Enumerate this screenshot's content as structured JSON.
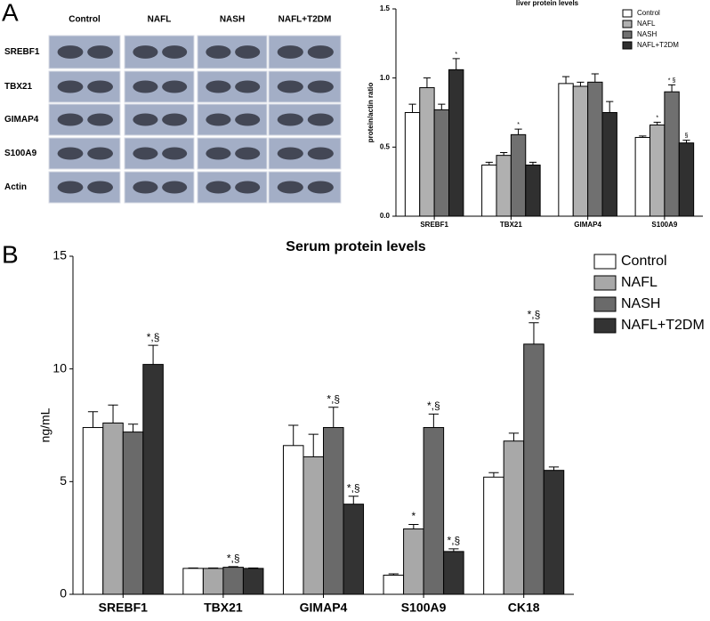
{
  "panel_labels": [
    "A",
    "B"
  ],
  "blot": {
    "groups": [
      "Control",
      "NAFL",
      "NASH",
      "NAFL+T2DM"
    ],
    "rows": [
      "SREBF1",
      "TBX21",
      "GIMAP4",
      "S100A9",
      "Actin"
    ]
  },
  "chart_data": [
    {
      "type": "bar",
      "title": "liver protein levels",
      "y_label": "protein/actin ratio",
      "categories": [
        "SREBF1",
        "TBX21",
        "GIMAP4",
        "S100A9"
      ],
      "ylim": [
        0,
        1.5
      ],
      "yticks": [
        {
          "value": 0,
          "label": "0.0"
        },
        {
          "value": 0.5,
          "label": "0.5"
        },
        {
          "value": 1,
          "label": "1.0"
        },
        {
          "value": 1.5,
          "label": "1.5"
        }
      ],
      "legend": "upper right",
      "series": [
        {
          "name": "Control",
          "color": "#ffffff",
          "values": [
            0.75,
            0.37,
            0.96,
            0.57
          ],
          "errors": [
            0.06,
            0.02,
            0.05,
            0.01
          ],
          "markers": [
            null,
            null,
            null,
            null
          ]
        },
        {
          "name": "NAFL",
          "color": "#b0b0b0",
          "values": [
            0.93,
            0.44,
            0.94,
            0.66
          ],
          "errors": [
            0.07,
            0.02,
            0.03,
            0.02
          ],
          "markers": [
            null,
            null,
            null,
            "*"
          ]
        },
        {
          "name": "NASH",
          "color": "#707070",
          "values": [
            0.77,
            0.59,
            0.97,
            0.9
          ],
          "errors": [
            0.04,
            0.04,
            0.06,
            0.05
          ],
          "markers": [
            null,
            "*",
            null,
            "* §"
          ]
        },
        {
          "name": "NAFL+T2DM",
          "color": "#303030",
          "values": [
            1.06,
            0.37,
            0.75,
            0.53
          ],
          "errors": [
            0.08,
            0.02,
            0.08,
            0.02
          ],
          "markers": [
            "*",
            null,
            null,
            "§"
          ]
        }
      ]
    },
    {
      "type": "bar",
      "title": "Serum protein levels",
      "y_label": "ng/mL",
      "categories": [
        "SREBF1",
        "TBX21",
        "GIMAP4",
        "S100A9",
        "CK18"
      ],
      "ylim": [
        0,
        15
      ],
      "yticks": [
        0,
        5,
        10,
        15
      ],
      "legend": "upper right",
      "series": [
        {
          "name": "Control",
          "color": "#ffffff",
          "values": [
            7.4,
            1.15,
            6.6,
            0.85,
            5.2
          ],
          "errors": [
            0.7,
            0.02,
            0.9,
            0.06,
            0.2
          ],
          "markers": [
            null,
            null,
            null,
            null,
            null
          ]
        },
        {
          "name": "NAFL",
          "color": "#a8a8a8",
          "values": [
            7.6,
            1.15,
            6.1,
            2.9,
            6.8
          ],
          "errors": [
            0.8,
            0.02,
            1.0,
            0.2,
            0.35
          ],
          "markers": [
            null,
            null,
            null,
            "*",
            null
          ]
        },
        {
          "name": "NASH",
          "color": "#6a6a6a",
          "values": [
            7.2,
            1.2,
            7.4,
            7.4,
            11.1
          ],
          "errors": [
            0.35,
            0.03,
            0.9,
            0.6,
            0.95
          ],
          "markers": [
            null,
            "*,§",
            "*,§",
            "*,§",
            "*,§"
          ]
        },
        {
          "name": "NAFL+T2DM",
          "color": "#333333",
          "values": [
            10.2,
            1.15,
            4.0,
            1.9,
            5.5
          ],
          "errors": [
            0.85,
            0.02,
            0.35,
            0.12,
            0.15
          ],
          "markers": [
            "*,§",
            null,
            "*,§",
            "*,§",
            null
          ]
        }
      ]
    }
  ]
}
